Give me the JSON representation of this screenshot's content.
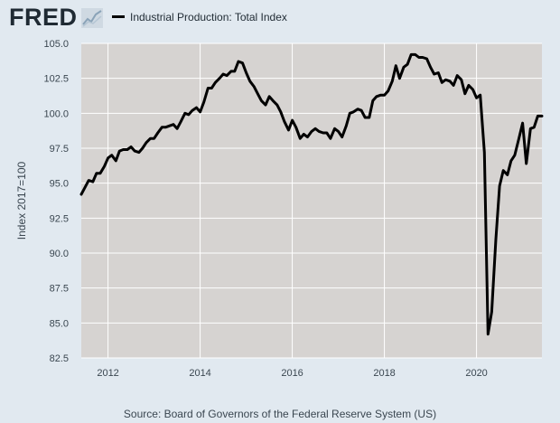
{
  "header": {
    "logo_text": "FRED",
    "logo_icon": "fred-chart-icon",
    "legend_label": "Industrial Production: Total Index"
  },
  "source_text": "Source: Board of Governors of the Federal Reserve System (US)",
  "colors": {
    "background": "#e1e9f0",
    "plot_background": "#d6d3d1",
    "series": "#000000",
    "grid": "#ffffff",
    "text": "#3a4650"
  },
  "chart_data": {
    "type": "line",
    "title": "",
    "xlabel": "",
    "ylabel": "Index 2017=100",
    "ylim": [
      82.5,
      105.0
    ],
    "yticks": [
      "82.5",
      "85.0",
      "87.5",
      "90.0",
      "92.5",
      "95.0",
      "97.5",
      "100.0",
      "102.5",
      "105.0"
    ],
    "xlim": [
      2011.42,
      2021.42
    ],
    "xticks": [
      "2012",
      "2014",
      "2016",
      "2018",
      "2020"
    ],
    "grid": true,
    "legend": "top-left",
    "series": [
      {
        "name": "Industrial Production: Total Index",
        "x": [
          2011.42,
          2011.5,
          2011.58,
          2011.67,
          2011.75,
          2011.83,
          2011.92,
          2012.0,
          2012.08,
          2012.17,
          2012.25,
          2012.33,
          2012.42,
          2012.5,
          2012.58,
          2012.67,
          2012.75,
          2012.83,
          2012.92,
          2013.0,
          2013.08,
          2013.17,
          2013.25,
          2013.33,
          2013.42,
          2013.5,
          2013.58,
          2013.67,
          2013.75,
          2013.83,
          2013.92,
          2014.0,
          2014.08,
          2014.17,
          2014.25,
          2014.33,
          2014.42,
          2014.5,
          2014.58,
          2014.67,
          2014.75,
          2014.83,
          2014.92,
          2015.0,
          2015.08,
          2015.17,
          2015.25,
          2015.33,
          2015.42,
          2015.5,
          2015.58,
          2015.67,
          2015.75,
          2015.83,
          2015.92,
          2016.0,
          2016.08,
          2016.17,
          2016.25,
          2016.33,
          2016.42,
          2016.5,
          2016.58,
          2016.67,
          2016.75,
          2016.83,
          2016.92,
          2017.0,
          2017.08,
          2017.17,
          2017.25,
          2017.33,
          2017.42,
          2017.5,
          2017.58,
          2017.67,
          2017.75,
          2017.83,
          2017.92,
          2018.0,
          2018.08,
          2018.17,
          2018.25,
          2018.33,
          2018.42,
          2018.5,
          2018.58,
          2018.67,
          2018.75,
          2018.83,
          2018.92,
          2019.0,
          2019.08,
          2019.17,
          2019.25,
          2019.33,
          2019.42,
          2019.5,
          2019.58,
          2019.67,
          2019.75,
          2019.83,
          2019.92,
          2020.0,
          2020.08,
          2020.17,
          2020.25,
          2020.33,
          2020.42,
          2020.5,
          2020.58,
          2020.67,
          2020.75,
          2020.83,
          2020.92,
          2021.0,
          2021.08,
          2021.17,
          2021.25,
          2021.33,
          2021.42
        ],
        "values": [
          94.2,
          94.7,
          95.2,
          95.1,
          95.7,
          95.7,
          96.2,
          96.8,
          97.0,
          96.6,
          97.3,
          97.4,
          97.4,
          97.6,
          97.3,
          97.2,
          97.5,
          97.9,
          98.2,
          98.2,
          98.6,
          99.0,
          99.0,
          99.1,
          99.2,
          98.9,
          99.4,
          100.0,
          99.9,
          100.2,
          100.4,
          100.1,
          100.8,
          101.8,
          101.8,
          102.2,
          102.5,
          102.8,
          102.7,
          103.0,
          103.0,
          103.7,
          103.6,
          102.9,
          102.3,
          101.9,
          101.4,
          100.9,
          100.6,
          101.2,
          100.9,
          100.6,
          100.1,
          99.4,
          98.8,
          99.5,
          99.0,
          98.2,
          98.5,
          98.3,
          98.7,
          98.9,
          98.7,
          98.6,
          98.6,
          98.2,
          98.9,
          98.7,
          98.3,
          99.1,
          100.0,
          100.1,
          100.3,
          100.2,
          99.7,
          99.7,
          100.9,
          101.2,
          101.3,
          101.3,
          101.6,
          102.3,
          103.4,
          102.5,
          103.3,
          103.5,
          104.2,
          104.2,
          104.0,
          104.0,
          103.9,
          103.3,
          102.8,
          102.9,
          102.2,
          102.4,
          102.3,
          102.0,
          102.7,
          102.4,
          101.4,
          102.0,
          101.7,
          101.1,
          101.3,
          97.2,
          84.2,
          85.8,
          91.0,
          94.8,
          95.9,
          95.6,
          96.6,
          97.0,
          98.2,
          99.3,
          96.4,
          98.9,
          99.0,
          99.8,
          99.8
        ]
      }
    ]
  }
}
